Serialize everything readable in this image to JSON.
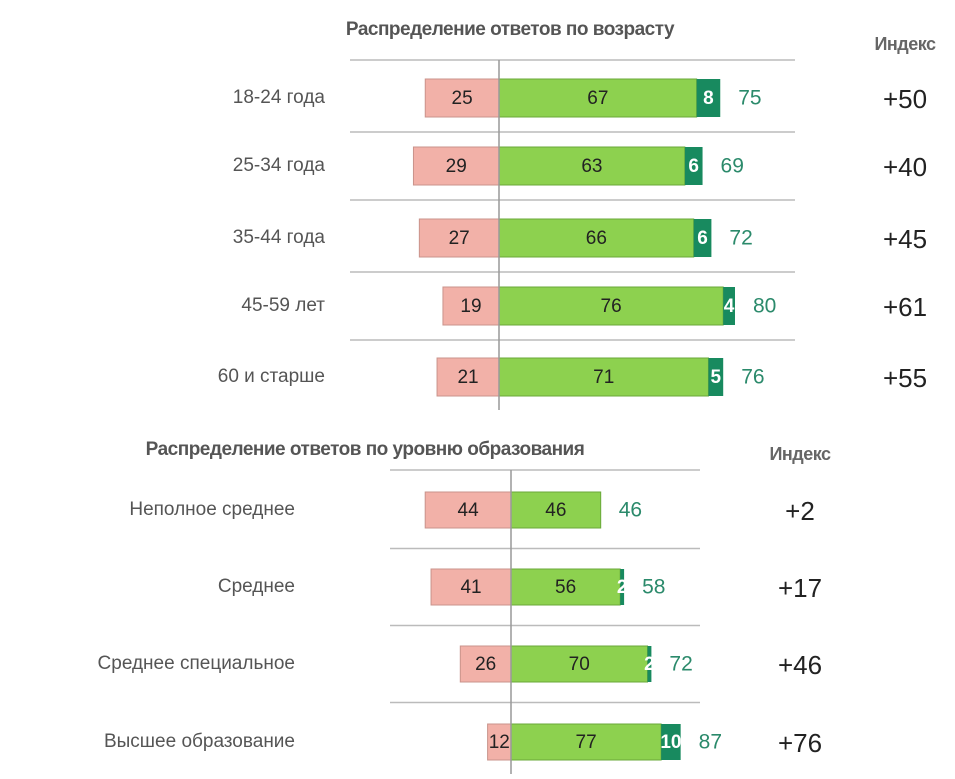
{
  "chart_data": [
    {
      "type": "diverging_bar",
      "title": "Распределение ответов по возрасту",
      "index_header": "Индекс",
      "categories": [
        "18-24 года",
        "25-34 года",
        "35-44 года",
        "45-59 лет",
        "60 и старше"
      ],
      "series": [
        {
          "name": "negative",
          "color": "#f2b1a8",
          "values": [
            25,
            29,
            27,
            19,
            21
          ]
        },
        {
          "name": "positive",
          "color": "#8dd14f",
          "values": [
            67,
            63,
            66,
            76,
            71
          ]
        },
        {
          "name": "strong positive",
          "color": "#188a5f",
          "values": [
            8,
            6,
            6,
            4,
            5
          ]
        }
      ],
      "totals": [
        75,
        69,
        72,
        80,
        76
      ],
      "totals_color": "#2b8a6b",
      "index": [
        50,
        40,
        45,
        61,
        55
      ],
      "index_labels": [
        "+50",
        "+40",
        "+45",
        "+61",
        "+55"
      ]
    },
    {
      "type": "diverging_bar",
      "title": "Распределение ответов по уровню образования",
      "index_header": "Индекс",
      "categories": [
        "Неполное среднее",
        "Среднее",
        "Среднее специальное",
        "Высшее образование"
      ],
      "series": [
        {
          "name": "negative",
          "color": "#f2b1a8",
          "values": [
            44,
            41,
            26,
            12
          ]
        },
        {
          "name": "positive",
          "color": "#8dd14f",
          "values": [
            46,
            56,
            70,
            77
          ]
        },
        {
          "name": "strong positive",
          "color": "#188a5f",
          "values": [
            null,
            2,
            2,
            10
          ]
        }
      ],
      "totals": [
        46,
        58,
        72,
        87
      ],
      "totals_color": "#2b8a6b",
      "index": [
        2,
        17,
        46,
        76
      ],
      "index_labels": [
        "+2",
        "+17",
        "+46",
        "+76"
      ]
    }
  ]
}
